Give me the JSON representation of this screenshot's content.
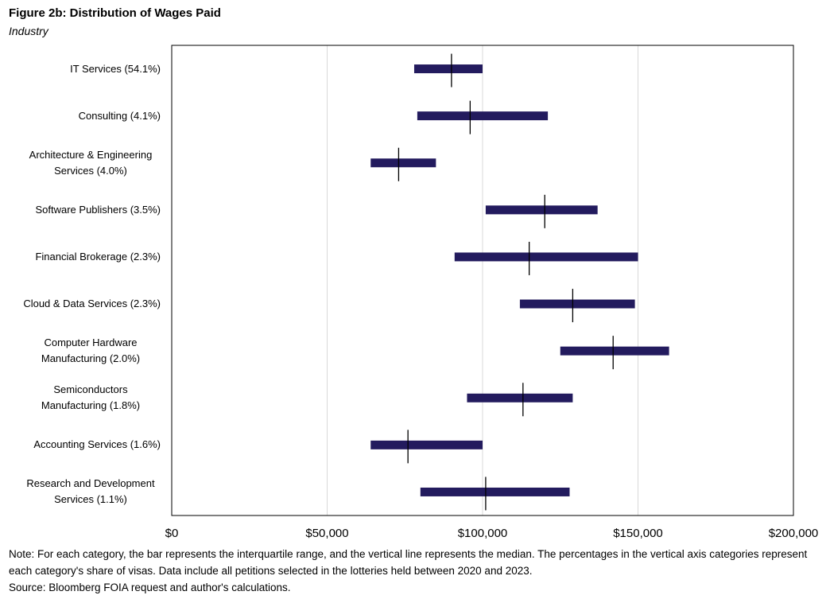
{
  "chart_data": {
    "type": "interval",
    "title": "Figure 2b: Distribution of Wages Paid",
    "subtitle": "Industry",
    "categories": [
      "IT Services (54.1%)",
      "Consulting (4.1%)",
      "Architecture & Engineering Services (4.0%)",
      "Software Publishers (3.5%)",
      "Financial Brokerage (2.3%)",
      "Cloud & Data Services (2.3%)",
      "Computer Hardware Manufacturing (2.0%)",
      "Semiconductors Manufacturing (1.8%)",
      "Accounting Services (1.6%)",
      "Research and Development Services (1.1%)"
    ],
    "q1": [
      78000,
      79000,
      64000,
      101000,
      91000,
      112000,
      125000,
      95000,
      64000,
      80000
    ],
    "q3": [
      100000,
      121000,
      85000,
      137000,
      150000,
      149000,
      160000,
      129000,
      100000,
      128000
    ],
    "median": [
      90000,
      96000,
      73000,
      120000,
      115000,
      129000,
      142000,
      113000,
      76000,
      101000
    ],
    "color": "#231b5e",
    "median_color": "#000000",
    "xlim": [
      0,
      200000
    ],
    "xticks": [
      {
        "value": 0,
        "label": "$0"
      },
      {
        "value": 50000,
        "label": "$50,000"
      },
      {
        "value": 100000,
        "label": "$100,000"
      },
      {
        "value": 150000,
        "label": "$150,000"
      },
      {
        "value": 200000,
        "label": "$200,000"
      }
    ],
    "grid": true,
    "note": "Note: For each category, the bar represents the interquartile range, and the vertical line represents the median. The percentages in the vertical axis categories represent each category's share of visas. Data include all petitions selected in the lotteries held between 2020 and 2023.",
    "source": "Source: Bloomberg FOIA request and author's calculations."
  }
}
